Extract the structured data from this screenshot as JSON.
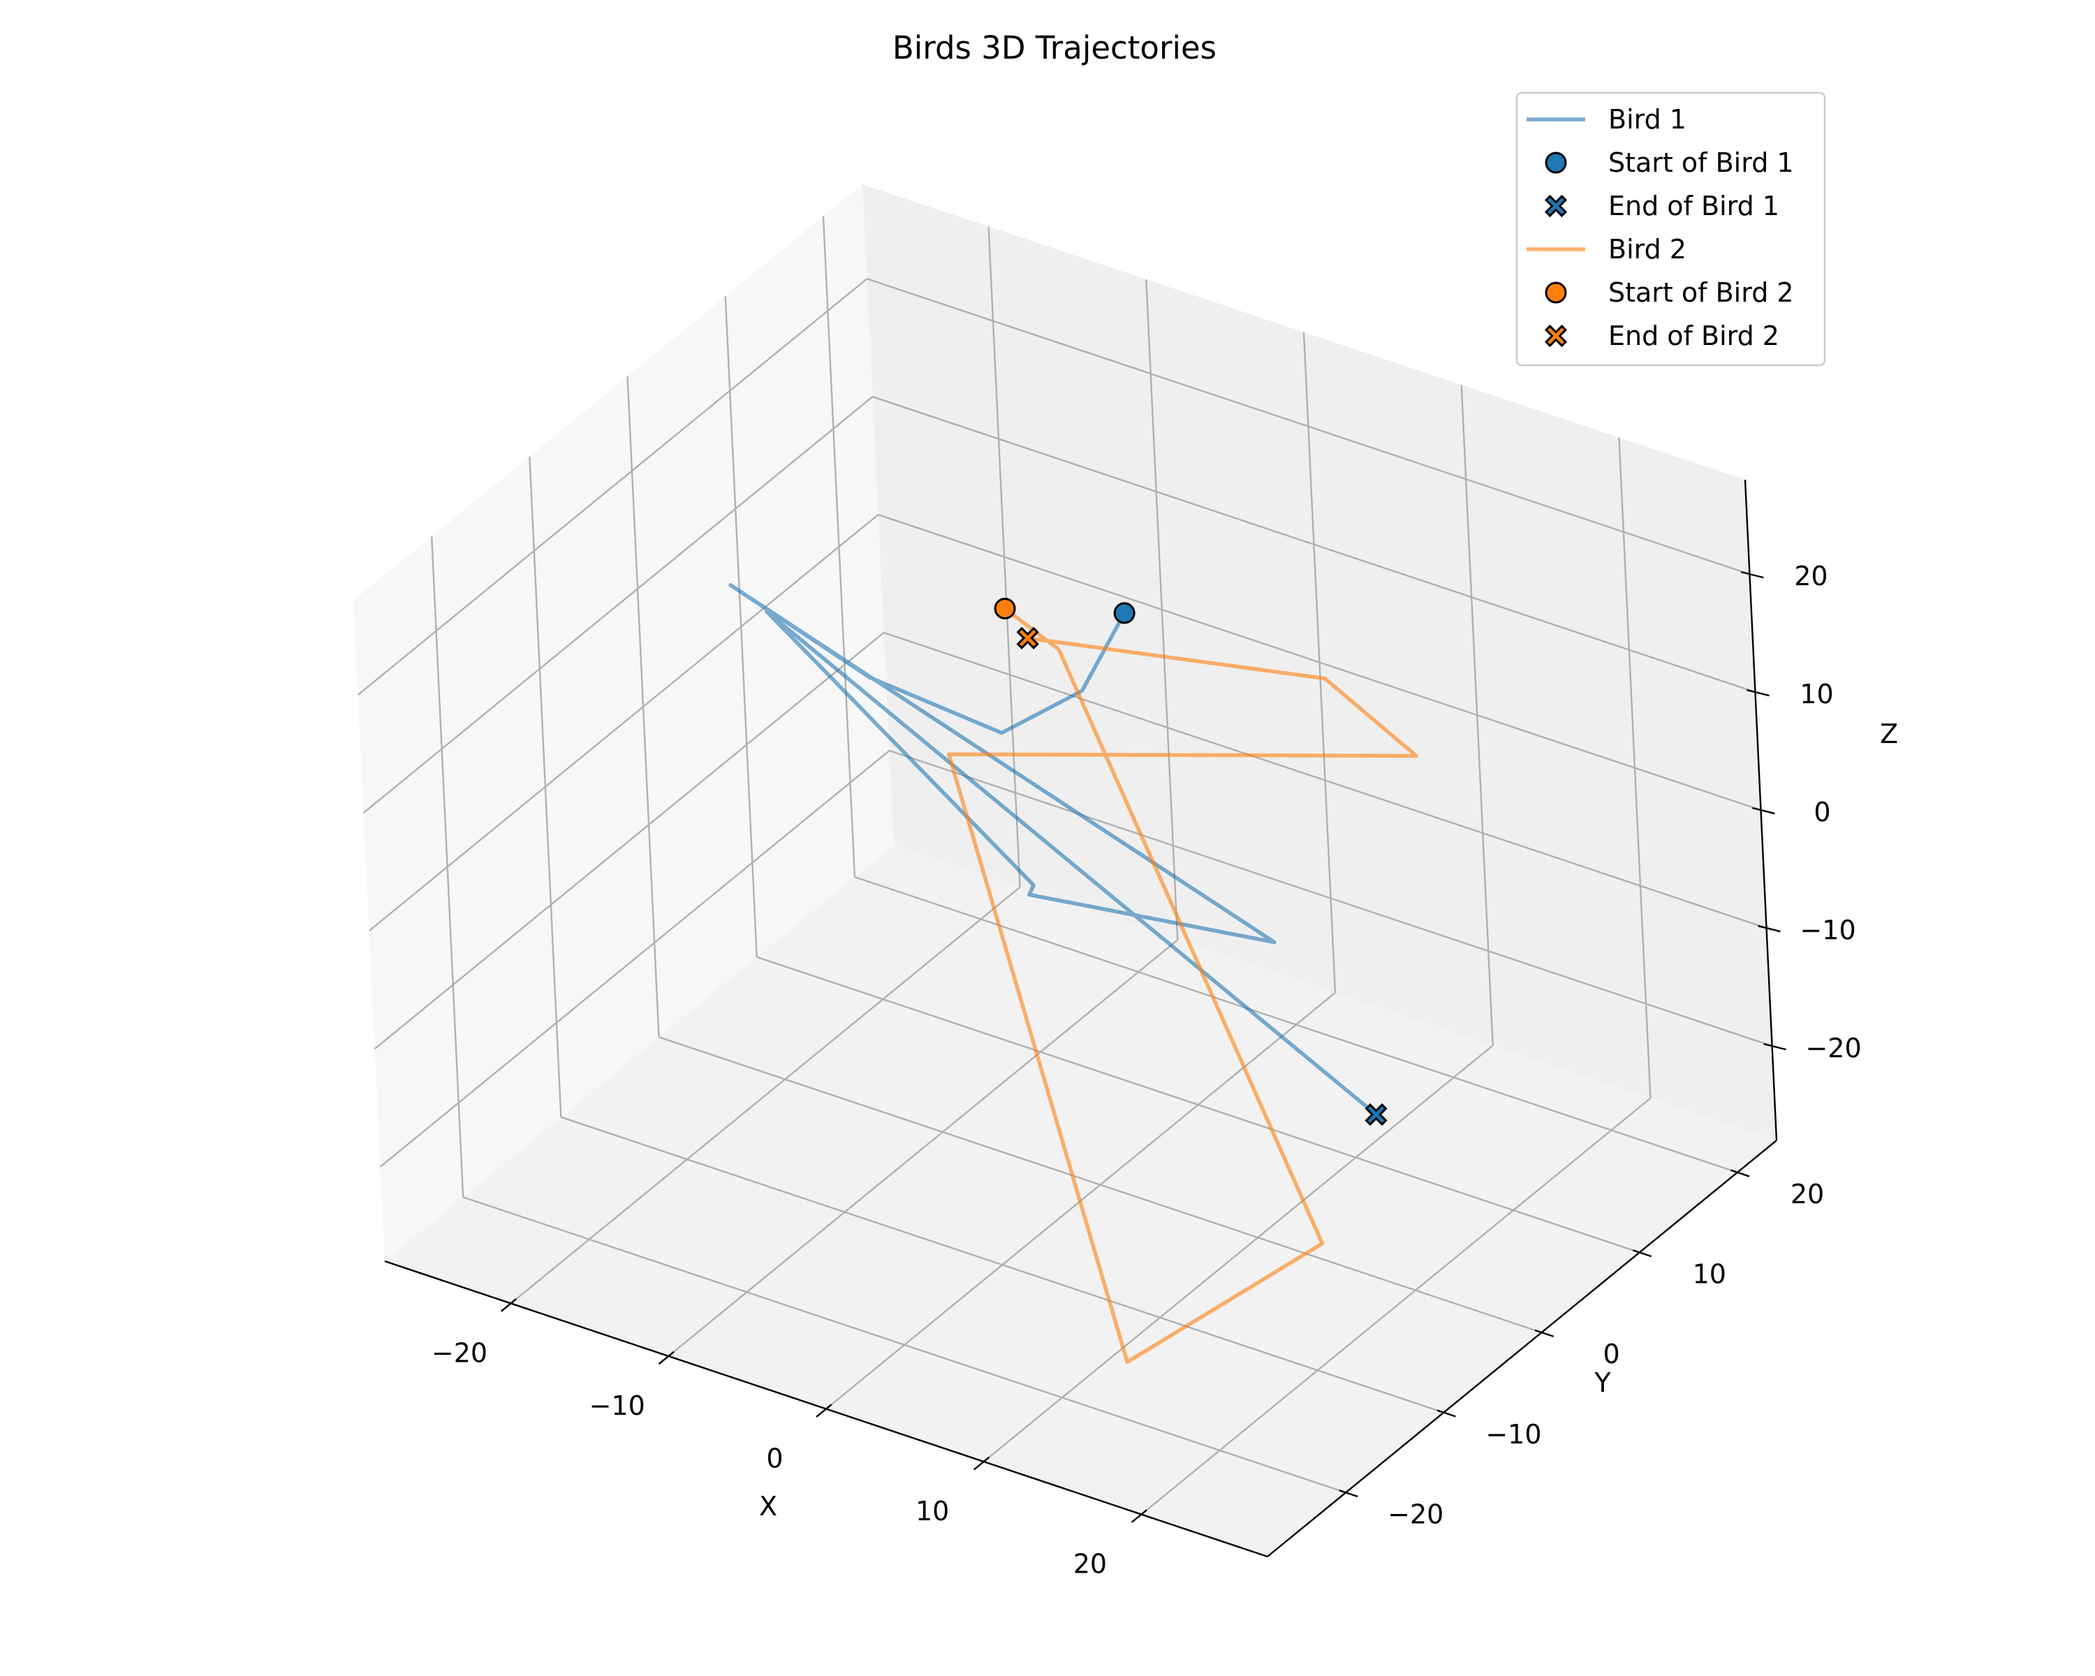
{
  "chart_data": {
    "type": "line3d",
    "title": "Birds 3D Trajectories",
    "xlabel": "X",
    "ylabel": "Y",
    "zlabel": "Z",
    "xlim": [
      -28,
      28
    ],
    "ylim": [
      -28,
      24
    ],
    "zlim": [
      -28,
      28
    ],
    "xticks": [
      -20,
      -10,
      0,
      10,
      20
    ],
    "yticks": [
      -20,
      -10,
      0,
      10,
      20
    ],
    "zticks": [
      -20,
      -10,
      0,
      10,
      20
    ],
    "grid": true,
    "legend_position": "top-right",
    "series": [
      {
        "name": "Bird 1",
        "color": "#1f77b4",
        "start_label": "Start of Bird 1",
        "end_label": "End of Bird 1",
        "points": [
          [
            2,
            2,
            20
          ],
          [
            1,
            -1,
            15
          ],
          [
            -3,
            -3,
            11
          ],
          [
            -12,
            -2,
            11
          ],
          [
            -22,
            0,
            13
          ],
          [
            10,
            3,
            -5
          ],
          [
            -5,
            2,
            -7
          ],
          [
            -6,
            4,
            -8
          ],
          [
            -25,
            8,
            4
          ],
          [
            18,
            0,
            -14
          ]
        ]
      },
      {
        "name": "Bird 2",
        "color": "#ff7f0e",
        "start_label": "Start of Bird 2",
        "end_label": "End of Bird 2",
        "points": [
          [
            -7,
            4,
            15
          ],
          [
            -3,
            3,
            14
          ],
          [
            22,
            -12,
            -15
          ],
          [
            13,
            -18,
            -25
          ],
          [
            -15,
            10,
            -5
          ],
          [
            23,
            -2,
            20
          ],
          [
            18,
            -3,
            25
          ],
          [
            -3,
            0,
            17
          ]
        ]
      }
    ]
  }
}
